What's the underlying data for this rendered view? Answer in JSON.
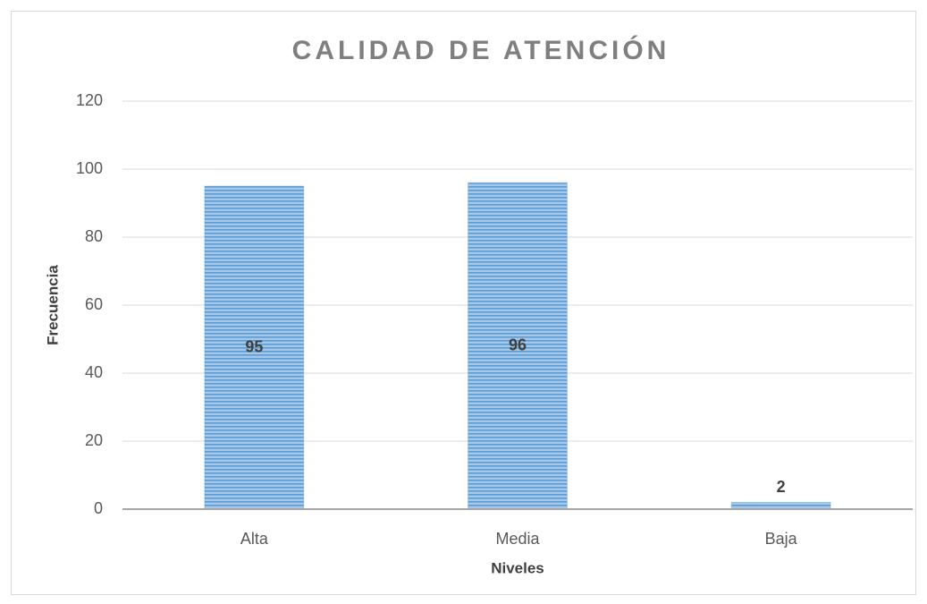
{
  "chart_data": {
    "type": "bar",
    "title": "CALIDAD DE ATENCIÓN",
    "categories": [
      "Alta",
      "Media",
      "Baja"
    ],
    "values": [
      95,
      96,
      2
    ],
    "color": "#5b9bd5",
    "xlabel": "Niveles",
    "ylabel": "Frecuencia",
    "ylim": [
      0,
      120
    ],
    "yticks": [
      0,
      20,
      40,
      60,
      80,
      100,
      120
    ],
    "grid": true
  }
}
